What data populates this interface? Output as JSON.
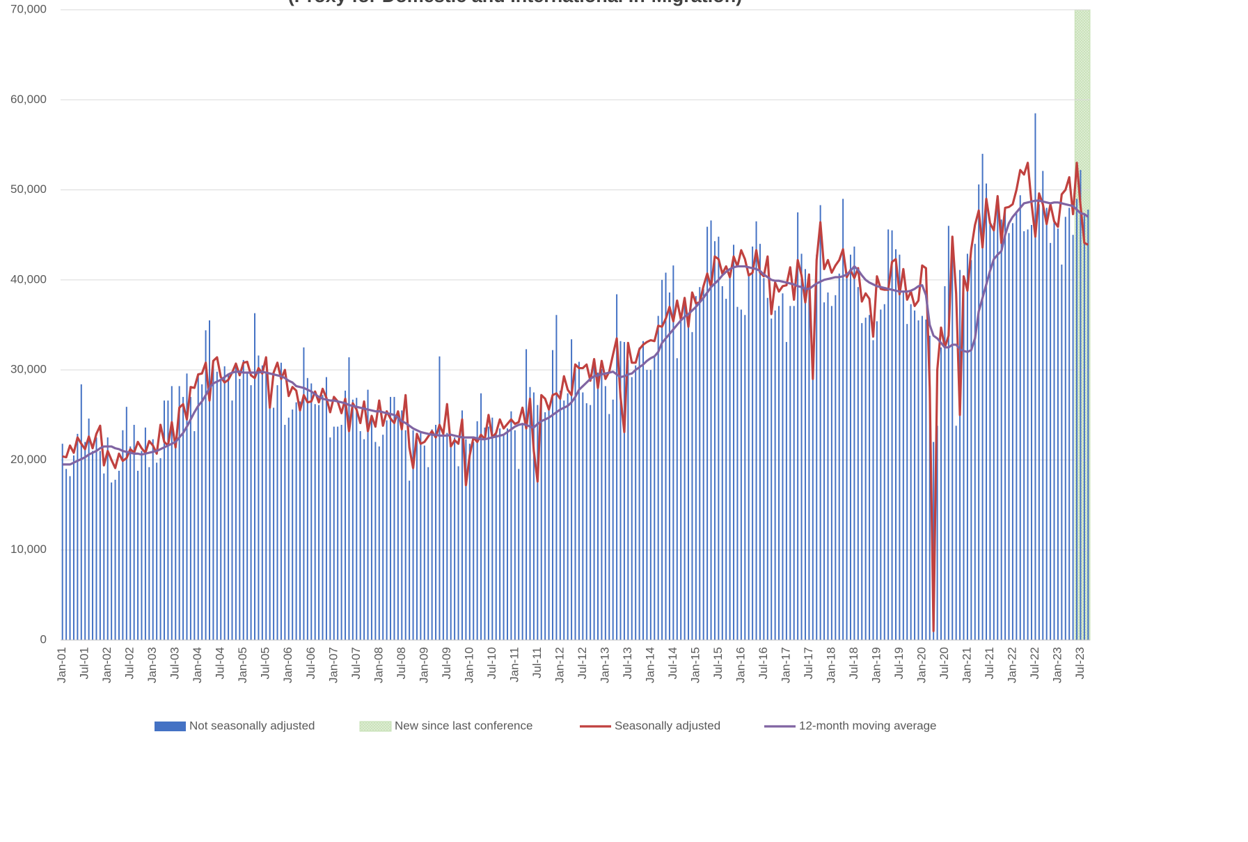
{
  "chart_data": {
    "type": "bar-line",
    "title": "(Proxy for Domestic and International In-Migration)",
    "categories": [
      "Jan-01",
      null,
      null,
      null,
      null,
      null,
      "Jul-01",
      null,
      null,
      null,
      null,
      null,
      "Jan-02",
      null,
      null,
      null,
      null,
      null,
      "Jul-02",
      null,
      null,
      null,
      null,
      null,
      "Jan-03",
      null,
      null,
      null,
      null,
      null,
      "Jul-03",
      null,
      null,
      null,
      null,
      null,
      "Jan-04",
      null,
      null,
      null,
      null,
      null,
      "Jul-04",
      null,
      null,
      null,
      null,
      null,
      "Jan-05",
      null,
      null,
      null,
      null,
      null,
      "Jul-05",
      null,
      null,
      null,
      null,
      null,
      "Jan-06",
      null,
      null,
      null,
      null,
      null,
      "Jul-06",
      null,
      null,
      null,
      null,
      null,
      "Jan-07",
      null,
      null,
      null,
      null,
      null,
      "Jul-07",
      null,
      null,
      null,
      null,
      null,
      "Jan-08",
      null,
      null,
      null,
      null,
      null,
      "Jul-08",
      null,
      null,
      null,
      null,
      null,
      "Jan-09",
      null,
      null,
      null,
      null,
      null,
      "Jul-09",
      null,
      null,
      null,
      null,
      null,
      "Jan-10",
      null,
      null,
      null,
      null,
      null,
      "Jul-10",
      null,
      null,
      null,
      null,
      null,
      "Jan-11",
      null,
      null,
      null,
      null,
      null,
      "Jul-11",
      null,
      null,
      null,
      null,
      null,
      "Jan-12",
      null,
      null,
      null,
      null,
      null,
      "Jul-12",
      null,
      null,
      null,
      null,
      null,
      "Jan-13",
      null,
      null,
      null,
      null,
      null,
      "Jul-13",
      null,
      null,
      null,
      null,
      null,
      "Jan-14",
      null,
      null,
      null,
      null,
      null,
      "Jul-14",
      null,
      null,
      null,
      null,
      null,
      "Jan-15",
      null,
      null,
      null,
      null,
      null,
      "Jul-15",
      null,
      null,
      null,
      null,
      null,
      "Jan-16",
      null,
      null,
      null,
      null,
      null,
      "Jul-16",
      null,
      null,
      null,
      null,
      null,
      "Jan-17",
      null,
      null,
      null,
      null,
      null,
      "Jul-17",
      null,
      null,
      null,
      null,
      null,
      "Jan-18",
      null,
      null,
      null,
      null,
      null,
      "Jul-18",
      null,
      null,
      null,
      null,
      null,
      "Jan-19",
      null,
      null,
      null,
      null,
      null,
      "Jul-19",
      null,
      null,
      null,
      null,
      null,
      "Jan-20",
      null,
      null,
      null,
      null,
      null,
      "Jul-20",
      null,
      null,
      null,
      null,
      null,
      "Jan-21",
      null,
      null,
      null,
      null,
      null,
      "Jul-21",
      null,
      null,
      null,
      null,
      null,
      "Jan-22",
      null,
      null,
      null,
      null,
      null,
      "Jul-22",
      null,
      null,
      null,
      null,
      null,
      "Jan-23",
      null,
      null,
      null,
      null,
      null,
      "Jul-23",
      null,
      null
    ],
    "series": [
      {
        "name": "Not seasonally adjusted",
        "type": "bar",
        "color": "#4472c4",
        "values": [
          21800,
          19000,
          18200,
          20500,
          22900,
          28400,
          22000,
          24600,
          21000,
          22500,
          21000,
          18500,
          22500,
          17500,
          17800,
          18800,
          23300,
          25900,
          21500,
          23900,
          18800,
          21000,
          23600,
          19200,
          22300,
          19700,
          20200,
          26600,
          26600,
          28200,
          22000,
          28200,
          27000,
          29600,
          27000,
          23200,
          29600,
          28400,
          34400,
          35500,
          30600,
          29800,
          29000,
          30400,
          29400,
          26600,
          30600,
          29000,
          31100,
          29800,
          28300,
          36300,
          31600,
          30500,
          29600,
          26000,
          25800,
          28300,
          30800,
          23900,
          24700,
          25600,
          26400,
          26500,
          32500,
          29100,
          28500,
          26200,
          26100,
          27200,
          29200,
          22500,
          23700,
          23700,
          23900,
          27700,
          31400,
          26700,
          26900,
          23200,
          22300,
          27800,
          24800,
          22000,
          21500,
          22800,
          24400,
          27000,
          27000,
          24900,
          25500,
          23300,
          17700,
          23300,
          22200,
          23200,
          21600,
          19200,
          23400,
          23900,
          31500,
          22700,
          23000,
          21600,
          22500,
          19300,
          25500,
          22300,
          21800,
          22000,
          24300,
          27400,
          23600,
          23700,
          24700,
          22900,
          23500,
          22800,
          23500,
          25400,
          23300,
          19000,
          24000,
          32300,
          28100,
          27500,
          26100,
          26400,
          25300,
          25800,
          32200,
          36100,
          27700,
          26600,
          27400,
          33400,
          30100,
          30900,
          27500,
          26300,
          26100,
          31000,
          29700,
          30100,
          28200,
          25100,
          26700,
          38400,
          33200,
          33100,
          31100,
          29200,
          30500,
          32500,
          33200,
          30000,
          30000,
          31400,
          36000,
          40000,
          40800,
          38600,
          41600,
          31300,
          35400,
          37200,
          36000,
          34200,
          38200,
          39200,
          39000,
          45900,
          46600,
          44300,
          44800,
          39300,
          37900,
          40600,
          43900,
          37000,
          36700,
          36100,
          40700,
          43700,
          46500,
          44000,
          40200,
          38000,
          35700,
          36600,
          37100,
          38500,
          33100,
          37100,
          37100,
          47500,
          42900,
          41200,
          39700,
          31000,
          42800,
          48300,
          37500,
          38600,
          37100,
          38300,
          40700,
          49000,
          40700,
          42800,
          43700,
          39200,
          35200,
          35800,
          36100,
          33300,
          35400,
          36700,
          37300,
          45600,
          45500,
          43400,
          42800,
          38800,
          35100,
          37300,
          36600,
          35500,
          36000,
          35600,
          33800,
          22000,
          23800,
          32500,
          39300,
          46000,
          43300,
          23800,
          41100,
          39800,
          42900,
          42200,
          44000,
          50600,
          54000,
          50700,
          46200,
          46300,
          48300,
          46700,
          47600,
          45200,
          46300,
          47600,
          49400,
          45400,
          45600,
          46100,
          58500,
          48400,
          52100,
          48000,
          44100,
          46600,
          45700,
          41700,
          47000,
          48000,
          45000,
          49000,
          52200,
          47200,
          47800
        ]
      },
      {
        "name": "Seasonally adjusted",
        "type": "line",
        "color": "#c0413f",
        "values": [
          20400,
          20300,
          21600,
          20800,
          22500,
          21800,
          21200,
          22600,
          21300,
          22900,
          23800,
          19400,
          21000,
          20000,
          19100,
          20700,
          19900,
          20200,
          21200,
          20800,
          22000,
          21300,
          20800,
          22100,
          21600,
          20700,
          23900,
          22000,
          21600,
          24200,
          21400,
          25800,
          26200,
          24500,
          28100,
          28000,
          29500,
          29600,
          30800,
          26600,
          31000,
          31400,
          29200,
          28600,
          28900,
          29700,
          30700,
          29400,
          30800,
          30900,
          29400,
          29100,
          30200,
          29600,
          31400,
          25800,
          29700,
          30800,
          29000,
          30000,
          27100,
          28100,
          27700,
          25500,
          27200,
          26400,
          26500,
          27600,
          26400,
          27900,
          26900,
          25300,
          27000,
          26500,
          25200,
          26800,
          23200,
          26300,
          25600,
          24100,
          26500,
          23200,
          24900,
          23700,
          26600,
          23800,
          25400,
          24600,
          24100,
          25400,
          23400,
          27200,
          21400,
          19100,
          22900,
          21800,
          22000,
          22600,
          23200,
          22500,
          23900,
          22900,
          26200,
          21500,
          22200,
          21800,
          24500,
          17200,
          20500,
          22500,
          22000,
          22800,
          22300,
          25000,
          22500,
          23000,
          24500,
          23500,
          24000,
          24500,
          24000,
          24200,
          25800,
          23500,
          26800,
          21000,
          17600,
          27200,
          26800,
          25600,
          27200,
          27400,
          26800,
          29300,
          27800,
          27200,
          30600,
          30200,
          30200,
          30600,
          28800,
          31200,
          28000,
          31000,
          29000,
          29800,
          31700,
          33500,
          27000,
          23100,
          33000,
          30800,
          30800,
          32300,
          32800,
          33100,
          33300,
          33200,
          34900,
          34800,
          35700,
          37000,
          35400,
          37700,
          35600,
          38000,
          34800,
          38600,
          37400,
          37500,
          39300,
          40700,
          39200,
          42600,
          42300,
          40700,
          41500,
          40300,
          42600,
          41500,
          43300,
          42300,
          40500,
          40800,
          43300,
          40800,
          40400,
          42600,
          36200,
          39700,
          38700,
          39300,
          39400,
          41400,
          37800,
          42200,
          40500,
          37500,
          40600,
          29000,
          42200,
          46400,
          41200,
          42200,
          40800,
          41600,
          42200,
          43400,
          40300,
          41100,
          40200,
          41300,
          37600,
          38500,
          37900,
          33700,
          40400,
          39000,
          38900,
          38900,
          42000,
          42300,
          38400,
          41200,
          37800,
          38700,
          37100,
          37700,
          41600,
          41300,
          28000,
          1000,
          30000,
          34700,
          32500,
          33800,
          44800,
          38500,
          25000,
          40400,
          38800,
          43400,
          46100,
          47700,
          43600,
          49000,
          46300,
          45500,
          49300,
          44100,
          48000,
          48100,
          48400,
          50000,
          52200,
          51700,
          53000,
          48500,
          44800,
          49600,
          48400,
          46200,
          48400,
          46500,
          45900,
          49500,
          50000,
          51400,
          47300,
          53000,
          48200,
          44100,
          43900
        ]
      },
      {
        "name": "12-month moving average",
        "type": "line",
        "color": "#8064a2",
        "values": [
          19500,
          19500,
          19500,
          19700,
          19900,
          20100,
          20300,
          20600,
          20800,
          21000,
          21300,
          21500,
          21500,
          21500,
          21300,
          21200,
          21000,
          20900,
          20800,
          20700,
          20700,
          20600,
          20700,
          20800,
          20900,
          21000,
          21200,
          21400,
          21600,
          21800,
          22000,
          22500,
          23000,
          23700,
          24500,
          25300,
          26000,
          26500,
          27200,
          28000,
          28500,
          28700,
          28900,
          29200,
          29500,
          29700,
          29800,
          29800,
          29700,
          29700,
          29700,
          29700,
          29700,
          29800,
          29700,
          29600,
          29500,
          29400,
          29300,
          29100,
          28800,
          28600,
          28200,
          28100,
          28000,
          27800,
          27600,
          27300,
          27000,
          26800,
          26700,
          26600,
          26600,
          26500,
          26400,
          26300,
          26100,
          26000,
          25900,
          25800,
          25700,
          25600,
          25500,
          25400,
          25400,
          25300,
          25200,
          25100,
          25000,
          24700,
          24300,
          24100,
          23800,
          23500,
          23300,
          23100,
          23000,
          22900,
          22800,
          22800,
          22700,
          22700,
          22700,
          22800,
          22700,
          22600,
          22500,
          22500,
          22500,
          22500,
          22400,
          22300,
          22300,
          22400,
          22500,
          22600,
          22700,
          22800,
          23100,
          23400,
          23700,
          23900,
          24000,
          23900,
          23700,
          23600,
          24000,
          24300,
          24500,
          24700,
          25000,
          25300,
          25600,
          25800,
          26000,
          26400,
          27000,
          27800,
          28200,
          28600,
          29000,
          29300,
          29400,
          29500,
          29600,
          29700,
          29800,
          29500,
          29200,
          29300,
          29500,
          29600,
          30000,
          30300,
          30600,
          31000,
          31300,
          31500,
          32000,
          33000,
          33500,
          34000,
          34500,
          35000,
          35500,
          35900,
          36200,
          36600,
          37000,
          37500,
          38000,
          38600,
          39200,
          39600,
          40000,
          40500,
          40900,
          41200,
          41400,
          41500,
          41500,
          41500,
          41400,
          41300,
          41200,
          41000,
          40600,
          40300,
          40000,
          39900,
          39900,
          39800,
          39700,
          39600,
          39500,
          39300,
          39200,
          39000,
          39000,
          39300,
          39600,
          39800,
          40000,
          40100,
          40200,
          40300,
          40300,
          40400,
          40600,
          41000,
          41500,
          41100,
          40500,
          40000,
          39700,
          39500,
          39300,
          39200,
          39100,
          39000,
          38900,
          38800,
          38700,
          38700,
          38700,
          38800,
          39000,
          39300,
          39400,
          38300,
          35000,
          33800,
          33500,
          33000,
          32500,
          32500,
          32800,
          32800,
          32300,
          32100,
          32000,
          32200,
          33500,
          36500,
          38000,
          39500,
          41000,
          42300,
          42800,
          43200,
          45000,
          46300,
          47000,
          47500,
          48000,
          48500,
          48600,
          48700,
          48800,
          48800,
          48700,
          48600,
          48500,
          48600,
          48600,
          48500,
          48400,
          48300,
          48200,
          47800,
          47400,
          47300,
          47000
        ]
      }
    ],
    "highlight": {
      "name": "New since last conference",
      "last_n": 4,
      "color": "#e2efda"
    },
    "ylim": [
      0,
      70000
    ],
    "yticks": [
      0,
      {
        "value": 10000,
        "label": "10,000"
      },
      {
        "value": 20000,
        "label": "20,000"
      },
      {
        "value": 30000,
        "label": "30,000"
      },
      {
        "value": 40000,
        "label": "40,000"
      },
      {
        "value": 50000,
        "label": "50,000"
      },
      {
        "value": 60000,
        "label": "60,000"
      },
      {
        "value": 70000,
        "label": "70,000"
      }
    ],
    "grid": true,
    "legend": "bottom"
  }
}
